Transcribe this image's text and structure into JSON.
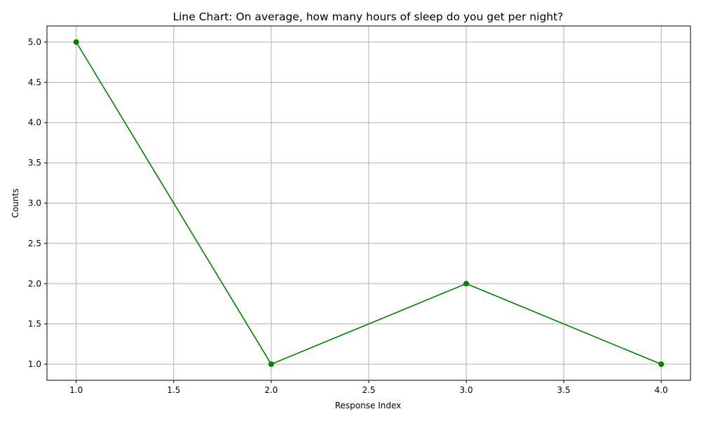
{
  "chart_data": {
    "type": "line",
    "title": "Line Chart: On average, how many hours of sleep do you get per night?",
    "xlabel": "Response Index",
    "ylabel": "Counts",
    "x": [
      1,
      2,
      3,
      4
    ],
    "series": [
      {
        "values": [
          5,
          1,
          2,
          1
        ],
        "color": "#008000",
        "marker": "circle"
      }
    ],
    "xlim": [
      0.85,
      4.15
    ],
    "ylim": [
      0.8,
      5.2
    ],
    "xticks": [
      1.0,
      1.5,
      2.0,
      2.5,
      3.0,
      3.5,
      4.0
    ],
    "xtick_labels": [
      "1.0",
      "1.5",
      "2.0",
      "2.5",
      "3.0",
      "3.5",
      "4.0"
    ],
    "yticks": [
      1.0,
      1.5,
      2.0,
      2.5,
      3.0,
      3.5,
      4.0,
      4.5,
      5.0
    ],
    "ytick_labels": [
      "1.0",
      "1.5",
      "2.0",
      "2.5",
      "3.0",
      "3.5",
      "4.0",
      "4.5",
      "5.0"
    ],
    "grid": true,
    "legend": false
  }
}
